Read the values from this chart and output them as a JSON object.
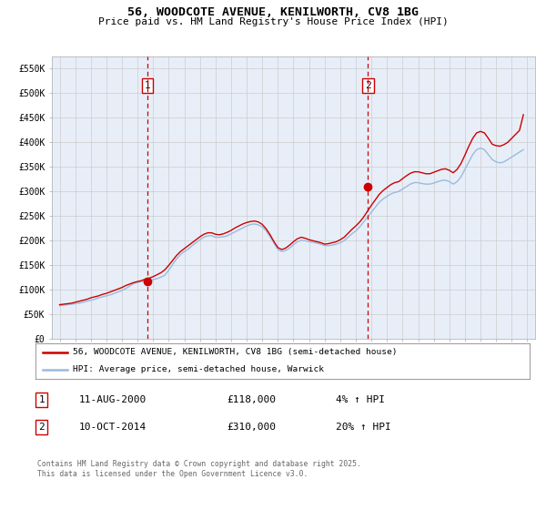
{
  "title": "56, WOODCOTE AVENUE, KENILWORTH, CV8 1BG",
  "subtitle": "Price paid vs. HM Land Registry's House Price Index (HPI)",
  "background_color": "#ffffff",
  "plot_bg_color": "#e8eef8",
  "red_line_color": "#cc0000",
  "blue_line_color": "#99bbdd",
  "vline_color": "#cc0000",
  "marker1_x": 2000.62,
  "marker1_y": 118000,
  "marker2_x": 2014.78,
  "marker2_y": 310000,
  "legend_label_red": "56, WOODCOTE AVENUE, KENILWORTH, CV8 1BG (semi-detached house)",
  "legend_label_blue": "HPI: Average price, semi-detached house, Warwick",
  "table_row1": [
    "1",
    "11-AUG-2000",
    "£118,000",
    "4% ↑ HPI"
  ],
  "table_row2": [
    "2",
    "10-OCT-2014",
    "£310,000",
    "20% ↑ HPI"
  ],
  "footer": "Contains HM Land Registry data © Crown copyright and database right 2025.\nThis data is licensed under the Open Government Licence v3.0.",
  "ylim": [
    0,
    575000
  ],
  "yticks": [
    0,
    50000,
    100000,
    150000,
    200000,
    250000,
    300000,
    350000,
    400000,
    450000,
    500000,
    550000
  ],
  "ytick_labels": [
    "£0",
    "£50K",
    "£100K",
    "£150K",
    "£200K",
    "£250K",
    "£300K",
    "£350K",
    "£400K",
    "£450K",
    "£500K",
    "£550K"
  ],
  "xlim": [
    1994.5,
    2025.5
  ],
  "xticks": [
    1995,
    1996,
    1997,
    1998,
    1999,
    2000,
    2001,
    2002,
    2003,
    2004,
    2005,
    2006,
    2007,
    2008,
    2009,
    2010,
    2011,
    2012,
    2013,
    2014,
    2015,
    2016,
    2017,
    2018,
    2019,
    2020,
    2021,
    2022,
    2023,
    2024,
    2025
  ],
  "hpi_data_x": [
    1995.0,
    1995.25,
    1995.5,
    1995.75,
    1996.0,
    1996.25,
    1996.5,
    1996.75,
    1997.0,
    1997.25,
    1997.5,
    1997.75,
    1998.0,
    1998.25,
    1998.5,
    1998.75,
    1999.0,
    1999.25,
    1999.5,
    1999.75,
    2000.0,
    2000.25,
    2000.5,
    2000.75,
    2001.0,
    2001.25,
    2001.5,
    2001.75,
    2002.0,
    2002.25,
    2002.5,
    2002.75,
    2003.0,
    2003.25,
    2003.5,
    2003.75,
    2004.0,
    2004.25,
    2004.5,
    2004.75,
    2005.0,
    2005.25,
    2005.5,
    2005.75,
    2006.0,
    2006.25,
    2006.5,
    2006.75,
    2007.0,
    2007.25,
    2007.5,
    2007.75,
    2008.0,
    2008.25,
    2008.5,
    2008.75,
    2009.0,
    2009.25,
    2009.5,
    2009.75,
    2010.0,
    2010.25,
    2010.5,
    2010.75,
    2011.0,
    2011.25,
    2011.5,
    2011.75,
    2012.0,
    2012.25,
    2012.5,
    2012.75,
    2013.0,
    2013.25,
    2013.5,
    2013.75,
    2014.0,
    2014.25,
    2014.5,
    2014.75,
    2015.0,
    2015.25,
    2015.5,
    2015.75,
    2016.0,
    2016.25,
    2016.5,
    2016.75,
    2017.0,
    2017.25,
    2017.5,
    2017.75,
    2018.0,
    2018.25,
    2018.5,
    2018.75,
    2019.0,
    2019.25,
    2019.5,
    2019.75,
    2020.0,
    2020.25,
    2020.5,
    2020.75,
    2021.0,
    2021.25,
    2021.5,
    2021.75,
    2022.0,
    2022.25,
    2022.5,
    2022.75,
    2023.0,
    2023.25,
    2023.5,
    2023.75,
    2024.0,
    2024.25,
    2024.5,
    2024.75
  ],
  "hpi_data_y": [
    68000,
    69000,
    70000,
    71000,
    72000,
    73000,
    75000,
    77000,
    79000,
    81000,
    84000,
    86000,
    88000,
    90000,
    93000,
    96000,
    99000,
    103000,
    108000,
    113000,
    115000,
    117000,
    118000,
    119000,
    121000,
    123000,
    126000,
    130000,
    140000,
    152000,
    163000,
    172000,
    178000,
    183000,
    190000,
    196000,
    202000,
    207000,
    210000,
    210000,
    207000,
    207000,
    208000,
    210000,
    214000,
    218000,
    222000,
    226000,
    230000,
    233000,
    234000,
    232000,
    228000,
    220000,
    208000,
    195000,
    182000,
    178000,
    180000,
    185000,
    192000,
    198000,
    201000,
    200000,
    198000,
    197000,
    195000,
    193000,
    190000,
    190000,
    191000,
    193000,
    196000,
    200000,
    207000,
    214000,
    220000,
    228000,
    238000,
    248000,
    258000,
    268000,
    278000,
    285000,
    290000,
    295000,
    298000,
    300000,
    305000,
    310000,
    315000,
    318000,
    318000,
    316000,
    315000,
    315000,
    317000,
    320000,
    322000,
    323000,
    320000,
    315000,
    320000,
    330000,
    345000,
    360000,
    375000,
    385000,
    388000,
    385000,
    375000,
    365000,
    360000,
    358000,
    360000,
    365000,
    370000,
    375000,
    380000,
    385000
  ],
  "red_data_x": [
    1995.0,
    1995.25,
    1995.5,
    1995.75,
    1996.0,
    1996.25,
    1996.5,
    1996.75,
    1997.0,
    1997.25,
    1997.5,
    1997.75,
    1998.0,
    1998.25,
    1998.5,
    1998.75,
    1999.0,
    1999.25,
    1999.5,
    1999.75,
    2000.0,
    2000.25,
    2000.5,
    2000.75,
    2001.0,
    2001.25,
    2001.5,
    2001.75,
    2002.0,
    2002.25,
    2002.5,
    2002.75,
    2003.0,
    2003.25,
    2003.5,
    2003.75,
    2004.0,
    2004.25,
    2004.5,
    2004.75,
    2005.0,
    2005.25,
    2005.5,
    2005.75,
    2006.0,
    2006.25,
    2006.5,
    2006.75,
    2007.0,
    2007.25,
    2007.5,
    2007.75,
    2008.0,
    2008.25,
    2008.5,
    2008.75,
    2009.0,
    2009.25,
    2009.5,
    2009.75,
    2010.0,
    2010.25,
    2010.5,
    2010.75,
    2011.0,
    2011.25,
    2011.5,
    2011.75,
    2012.0,
    2012.25,
    2012.5,
    2012.75,
    2013.0,
    2013.25,
    2013.5,
    2013.75,
    2014.0,
    2014.25,
    2014.5,
    2014.75,
    2015.0,
    2015.25,
    2015.5,
    2015.75,
    2016.0,
    2016.25,
    2016.5,
    2016.75,
    2017.0,
    2017.25,
    2017.5,
    2017.75,
    2018.0,
    2018.25,
    2018.5,
    2018.75,
    2019.0,
    2019.25,
    2019.5,
    2019.75,
    2020.0,
    2020.25,
    2020.5,
    2020.75,
    2021.0,
    2021.25,
    2021.5,
    2021.75,
    2022.0,
    2022.25,
    2022.5,
    2022.75,
    2023.0,
    2023.25,
    2023.5,
    2023.75,
    2024.0,
    2024.25,
    2024.5,
    2024.75
  ],
  "red_data_y": [
    70000,
    71000,
    72000,
    73000,
    75000,
    77000,
    79000,
    81000,
    84000,
    86000,
    88000,
    91000,
    93000,
    96000,
    99000,
    102000,
    105000,
    109000,
    112000,
    115000,
    117000,
    119000,
    122000,
    124000,
    127000,
    131000,
    135000,
    141000,
    150000,
    160000,
    170000,
    178000,
    184000,
    190000,
    196000,
    202000,
    208000,
    213000,
    216000,
    216000,
    213000,
    212000,
    214000,
    217000,
    221000,
    226000,
    230000,
    234000,
    237000,
    239000,
    240000,
    238000,
    233000,
    224000,
    212000,
    198000,
    186000,
    182000,
    185000,
    191000,
    198000,
    204000,
    207000,
    205000,
    202000,
    200000,
    198000,
    196000,
    193000,
    194000,
    196000,
    198000,
    202000,
    207000,
    215000,
    223000,
    230000,
    238000,
    248000,
    260000,
    272000,
    283000,
    294000,
    302000,
    308000,
    314000,
    318000,
    320000,
    326000,
    332000,
    337000,
    340000,
    340000,
    338000,
    336000,
    336000,
    339000,
    342000,
    345000,
    346000,
    343000,
    338000,
    345000,
    357000,
    374000,
    392000,
    408000,
    419000,
    422000,
    419000,
    408000,
    396000,
    393000,
    392000,
    395000,
    400000,
    408000,
    416000,
    424000,
    456000
  ]
}
